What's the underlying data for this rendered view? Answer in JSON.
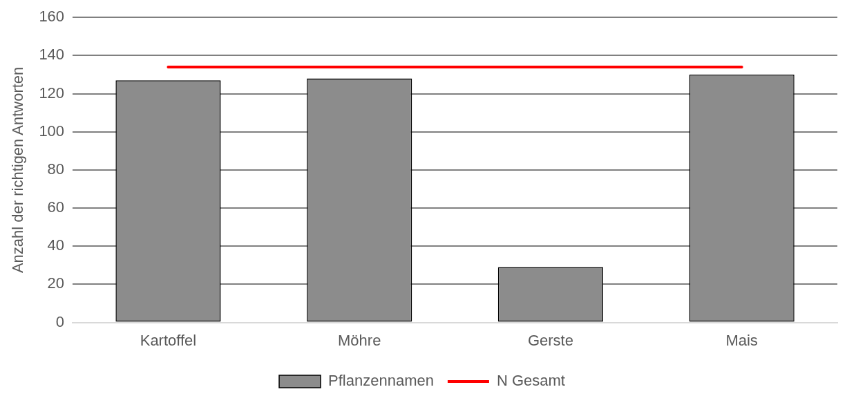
{
  "chart_data": {
    "type": "bar",
    "ylabel": "Anzahl der richtigen Antworten",
    "categories": [
      "Kartoffel",
      "Möhre",
      "Gerste",
      "Mais"
    ],
    "series": [
      {
        "name": "Pflanzennamen",
        "color": "#8c8c8c",
        "values": [
          127,
          128,
          29,
          130
        ]
      },
      {
        "name": "N Gesamt",
        "type": "line",
        "color": "#ff0000",
        "values": [
          134,
          134,
          134,
          134
        ]
      }
    ],
    "ylim": [
      0,
      160
    ],
    "yticks": [
      0,
      20,
      40,
      60,
      80,
      100,
      120,
      140,
      160
    ],
    "grid": "y",
    "legend": "bottom",
    "marker": "none"
  }
}
